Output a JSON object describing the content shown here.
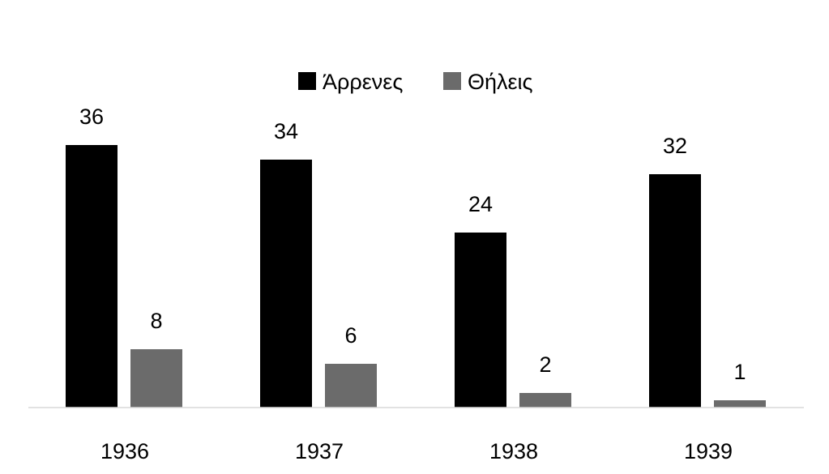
{
  "chart_data": {
    "type": "bar",
    "categories": [
      "1936",
      "1937",
      "1938",
      "1939"
    ],
    "series": [
      {
        "name": "Άρρενες",
        "values": [
          36,
          34,
          24,
          32
        ],
        "color": "#000000"
      },
      {
        "name": "Θήλεις",
        "values": [
          8,
          6,
          2,
          1
        ],
        "color": "#6b6b6b"
      }
    ],
    "ylim": [
      0,
      36
    ],
    "grid": false,
    "legend_position": "top-center",
    "data_labels": true
  }
}
